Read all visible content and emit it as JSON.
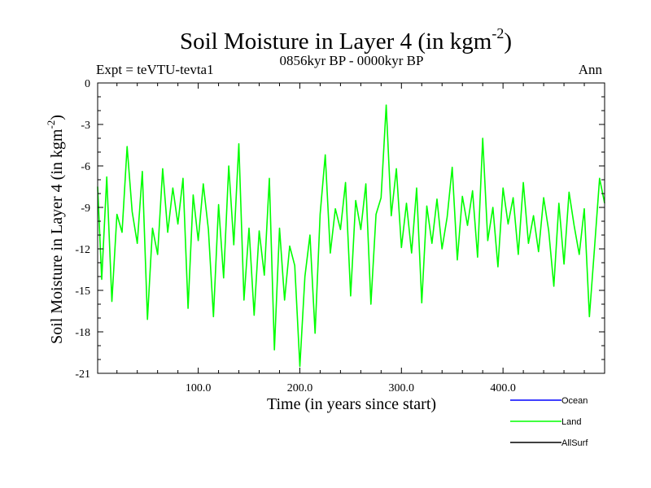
{
  "chart_data": {
    "type": "line",
    "title": "Soil Moisture in Layer 4 (in kgm",
    "title_superscript": "-2",
    "title_suffix": ")",
    "subtitle_left": "Expt = teVTU-tevta1",
    "subtitle_center": "0856kyr BP - 0000kyr BP",
    "subtitle_right": "Ann",
    "xlabel": "Time (in years since start)",
    "ylabel": "Soil Moisture in Layer 4 (in kgm",
    "ylabel_superscript": "-2",
    "ylabel_suffix": ")",
    "xlim": [
      1,
      500
    ],
    "ylim": [
      -21,
      0
    ],
    "x_ticks": [
      100,
      200,
      300,
      400
    ],
    "x_tick_labels": [
      "100.0",
      "200.0",
      "300.0",
      "400.0"
    ],
    "y_ticks": [
      0,
      -3,
      -6,
      -9,
      -12,
      -15,
      -18,
      -21
    ],
    "y_tick_labels": [
      "0",
      "-3",
      "-6",
      "-9",
      "-12",
      "-15",
      "-18",
      "-21"
    ],
    "legend": [
      {
        "name": "Ocean",
        "color": "#0000ff"
      },
      {
        "name": "Land",
        "color": "#00ff00"
      },
      {
        "name": "AllSurf",
        "color": "#000000"
      }
    ],
    "legend_position": "bottom-right",
    "series": [
      {
        "name": "Land",
        "color": "#00ff00",
        "x": [
          1,
          5,
          10,
          15,
          20,
          25,
          30,
          35,
          40,
          45,
          50,
          55,
          60,
          65,
          70,
          75,
          80,
          85,
          90,
          95,
          100,
          105,
          110,
          115,
          120,
          125,
          130,
          135,
          140,
          145,
          150,
          155,
          160,
          165,
          170,
          175,
          180,
          185,
          190,
          195,
          200,
          205,
          210,
          215,
          220,
          225,
          230,
          235,
          240,
          245,
          250,
          255,
          260,
          265,
          270,
          275,
          280,
          285,
          290,
          295,
          300,
          305,
          310,
          315,
          320,
          325,
          330,
          335,
          340,
          345,
          350,
          355,
          360,
          365,
          370,
          375,
          380,
          385,
          390,
          395,
          400,
          405,
          410,
          415,
          420,
          425,
          430,
          435,
          440,
          445,
          450,
          455,
          460,
          465,
          470,
          475,
          480,
          485,
          490,
          495,
          500
        ],
        "values": [
          -7.5,
          -14.2,
          -6.8,
          -15.8,
          -9.5,
          -10.8,
          -4.6,
          -9.3,
          -11.6,
          -6.4,
          -17.1,
          -10.5,
          -12.4,
          -6.2,
          -10.8,
          -7.6,
          -10.2,
          -6.9,
          -16.3,
          -8.1,
          -11.4,
          -7.3,
          -10.6,
          -16.9,
          -8.8,
          -14.1,
          -6.0,
          -11.7,
          -4.4,
          -15.7,
          -10.5,
          -16.8,
          -10.7,
          -13.9,
          -6.9,
          -19.3,
          -10.5,
          -15.7,
          -11.8,
          -13.2,
          -20.5,
          -14.0,
          -11.0,
          -18.1,
          -9.5,
          -5.2,
          -12.3,
          -9.1,
          -10.6,
          -7.2,
          -15.4,
          -8.5,
          -10.6,
          -7.3,
          -16.0,
          -9.5,
          -8.3,
          -1.6,
          -9.6,
          -6.2,
          -11.9,
          -8.7,
          -12.3,
          -7.6,
          -15.9,
          -8.9,
          -11.6,
          -8.4,
          -12.0,
          -9.7,
          -6.1,
          -12.8,
          -8.2,
          -10.3,
          -7.8,
          -12.6,
          -4.0,
          -11.4,
          -9.0,
          -13.3,
          -7.6,
          -10.2,
          -8.3,
          -12.4,
          -7.2,
          -11.6,
          -9.6,
          -12.2,
          -8.3,
          -10.7,
          -14.7,
          -8.7,
          -13.1,
          -7.9,
          -10.3,
          -12.4,
          -9.1,
          -16.9,
          -12.0,
          -6.9,
          -8.7
        ]
      }
    ]
  }
}
